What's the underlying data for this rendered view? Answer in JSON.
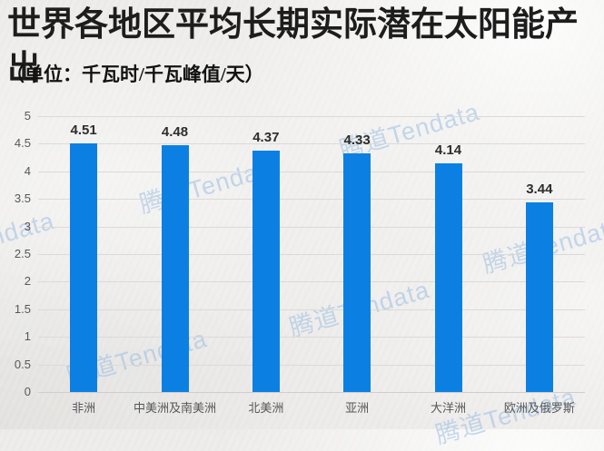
{
  "page": {
    "title": "世界各地区平均长期实际潜在太阳能产出",
    "subtitle": "（单位：千瓦时/千瓦峰值/天）"
  },
  "watermark": {
    "text": "腾道Tendata"
  },
  "chart_data": {
    "type": "bar",
    "title": "世界各地区平均长期实际潜在太阳能产出",
    "unit_label": "千瓦时/千瓦峰值/天",
    "categories": [
      "非洲",
      "中美洲及南美洲",
      "北美洲",
      "亚洲",
      "大洋洲",
      "欧洲及俄罗斯"
    ],
    "values": [
      4.51,
      4.48,
      4.37,
      4.33,
      4.14,
      3.44
    ],
    "value_labels": [
      "4.51",
      "4.48",
      "4.37",
      "4.33",
      "4.14",
      "3.44"
    ],
    "ylim": [
      0,
      5
    ],
    "ytick_step": 0.5,
    "grid": true,
    "legend": "none",
    "bar_color": "#0c80e2",
    "grid_color": "#dbdad8",
    "watermark_color": "#9cbde2"
  }
}
